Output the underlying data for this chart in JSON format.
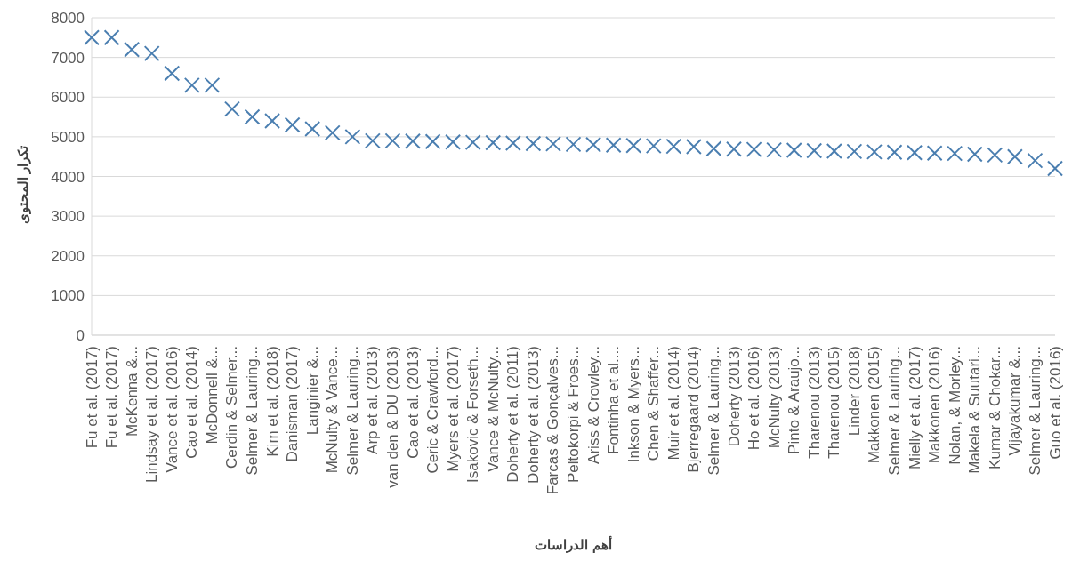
{
  "chart_data": {
    "type": "scatter",
    "xlabel": "أهم الدراسات",
    "ylabel": "تكرار المحتوى",
    "categories": [
      "Fu et al. (2017)",
      "Fu et al. (2017)",
      "McKenna &...",
      "Lindsay et al. (2017)",
      "Vance et al. (2016)",
      "Cao et al. (2014)",
      "McDonnell &...",
      "Cerdin & Selmer...",
      "Selmer & Lauring...",
      "Kim et al. (2018)",
      "Danisman (2017)",
      "Langinier &...",
      "McNulty & Vance...",
      "Selmer & Lauring...",
      "Arp et al. (2013)",
      "van den & DU (2013)",
      "Cao et al. (2013)",
      "Ceric & Crawford...",
      "Myers et al. (2017)",
      "Isakovic & Forseth...",
      "Vance & McNulty...",
      "Doherty et al. (2011)",
      "Doherty et al. (2013)",
      "Farcas & Gonçalves...",
      "Peltokorpi & Froes...",
      "Ariss & Crowley...",
      "Fontinha et al....",
      "Inkson & Myers...",
      "Chen & Shaffer...",
      "Muir et al. (2014)",
      "Bjerregaard (2014)",
      "Selmer & Lauring...",
      "Doherty (2013)",
      "Ho et al. (2016)",
      "McNulty (2013)",
      "Pinto & Araujo...",
      "Tharenou (2013)",
      "Tharenou (2015)",
      "Linder (2018)",
      "Makkonen (2015)",
      "Selmer & Lauring...",
      "Mielly et al. (2017)",
      "Makkonen (2016)",
      "Nolan, & Morley...",
      "Makela & Suutari...",
      "Kumar & Chokar...",
      "Vijayakumar &...",
      "Selmer & Lauring...",
      "Guo et al. (2016)"
    ],
    "values": [
      7500,
      7500,
      7200,
      7100,
      6600,
      6300,
      6300,
      5700,
      5500,
      5400,
      5300,
      5200,
      5100,
      5000,
      4900,
      4900,
      4890,
      4880,
      4870,
      4860,
      4850,
      4840,
      4830,
      4820,
      4810,
      4800,
      4790,
      4780,
      4770,
      4760,
      4750,
      4700,
      4690,
      4680,
      4670,
      4660,
      4650,
      4640,
      4630,
      4620,
      4610,
      4600,
      4590,
      4580,
      4560,
      4540,
      4500,
      4400,
      4200
    ],
    "color": "#4a7eb0",
    "marker": "cross",
    "ylim": [
      0,
      8000
    ],
    "yticks": [
      0,
      1000,
      2000,
      3000,
      4000,
      5000,
      6000,
      7000,
      8000
    ],
    "grid": "y"
  }
}
